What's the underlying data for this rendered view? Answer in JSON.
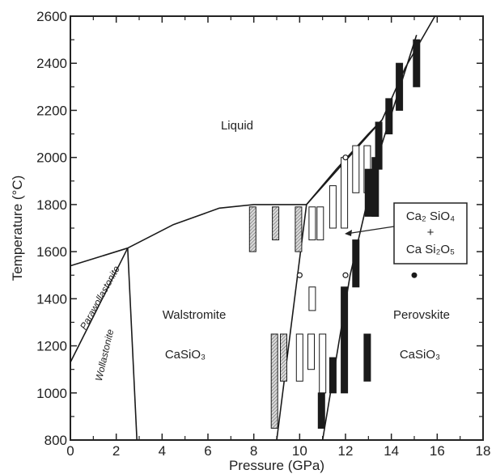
{
  "chart_data": {
    "type": "scatter",
    "title": "",
    "xlabel": "Pressure (GPa)",
    "ylabel": "Temperature (°C)",
    "xlim": [
      0,
      18
    ],
    "ylim": [
      800,
      2600
    ],
    "x_ticks": [
      0,
      2,
      4,
      6,
      8,
      10,
      12,
      14,
      16,
      18
    ],
    "y_ticks": [
      800,
      1000,
      1200,
      1400,
      1600,
      1800,
      2000,
      2200,
      2400,
      2600
    ],
    "grid": false,
    "phase_boundaries": [
      {
        "points": [
          [
            0,
            1540
          ],
          [
            2.5,
            1615
          ]
        ]
      },
      {
        "points": [
          [
            2.5,
            1615
          ],
          [
            4.5,
            1715
          ],
          [
            6.5,
            1785
          ],
          [
            8,
            1800
          ],
          [
            10.3,
            1800
          ]
        ]
      },
      {
        "points": [
          [
            10.3,
            1800
          ],
          [
            11.6,
            1950
          ],
          [
            13,
            2100
          ],
          [
            13.6,
            2160
          ]
        ]
      },
      {
        "points": [
          [
            13.6,
            2160
          ],
          [
            14.6,
            2380
          ],
          [
            15.9,
            2600
          ]
        ]
      },
      {
        "points": [
          [
            2.5,
            1615
          ],
          [
            0,
            1130
          ]
        ]
      },
      {
        "points": [
          [
            2.5,
            1615
          ],
          [
            2.9,
            800
          ]
        ]
      },
      {
        "points": [
          [
            9.0,
            800
          ],
          [
            10.3,
            1800
          ]
        ]
      },
      {
        "points": [
          [
            10.3,
            1800
          ],
          [
            13.6,
            2160
          ]
        ]
      },
      {
        "points": [
          [
            11.0,
            800
          ],
          [
            12.2,
            1500
          ],
          [
            13.4,
            2000
          ],
          [
            15.1,
            2520
          ]
        ]
      }
    ],
    "experiments": [
      {
        "phase": "Walstromite",
        "x": 7.95,
        "ymin": 1600,
        "ymax": 1790
      },
      {
        "phase": "Walstromite",
        "x": 8.95,
        "ymin": 1650,
        "ymax": 1790
      },
      {
        "phase": "Walstromite",
        "x": 9.95,
        "ymin": 1600,
        "ymax": 1790
      },
      {
        "phase": "Walstromite",
        "x": 8.9,
        "ymin": 850,
        "ymax": 1250
      },
      {
        "phase": "Walstromite",
        "x": 9.3,
        "ymin": 1050,
        "ymax": 1250
      },
      {
        "phase": "Ca2SiO4 + CaSi2O5",
        "x": 10.55,
        "ymin": 1650,
        "ymax": 1790
      },
      {
        "phase": "Ca2SiO4 + CaSi2O5",
        "x": 10.9,
        "ymin": 1650,
        "ymax": 1790
      },
      {
        "phase": "Ca2SiO4 + CaSi2O5",
        "x": 11.45,
        "ymin": 1700,
        "ymax": 1880
      },
      {
        "phase": "Ca2SiO4 + CaSi2O5",
        "x": 11.95,
        "ymin": 1700,
        "ymax": 2000
      },
      {
        "phase": "Ca2SiO4 + CaSi2O5",
        "x": 12.45,
        "ymin": 1850,
        "ymax": 2050
      },
      {
        "phase": "Ca2SiO4 + CaSi2O5",
        "x": 12.95,
        "ymin": 1850,
        "ymax": 2050
      },
      {
        "phase": "Ca2SiO4 + CaSi2O5",
        "x": 10.0,
        "ymin": 1050,
        "ymax": 1250
      },
      {
        "phase": "Ca2SiO4 + CaSi2O5",
        "x": 10.5,
        "ymin": 1100,
        "ymax": 1250
      },
      {
        "phase": "Ca2SiO4 + CaSi2O5",
        "x": 10.55,
        "ymin": 1350,
        "ymax": 1450
      },
      {
        "phase": "Ca2SiO4 + CaSi2O5",
        "x": 11.0,
        "ymin": 1000,
        "ymax": 1250
      },
      {
        "phase": "Perovskite",
        "x": 13.0,
        "ymin": 1750,
        "ymax": 1950
      },
      {
        "phase": "Perovskite",
        "x": 13.3,
        "ymin": 1750,
        "ymax": 2000
      },
      {
        "phase": "Perovskite",
        "x": 13.45,
        "ymin": 1950,
        "ymax": 2150
      },
      {
        "phase": "Perovskite",
        "x": 13.9,
        "ymin": 2100,
        "ymax": 2250
      },
      {
        "phase": "Perovskite",
        "x": 14.35,
        "ymin": 2200,
        "ymax": 2400
      },
      {
        "phase": "Perovskite",
        "x": 15.1,
        "ymin": 2300,
        "ymax": 2500
      },
      {
        "phase": "Perovskite",
        "x": 12.45,
        "ymin": 1450,
        "ymax": 1650
      },
      {
        "phase": "Perovskite",
        "x": 11.95,
        "ymin": 1000,
        "ymax": 1450
      },
      {
        "phase": "Perovskite",
        "x": 11.45,
        "ymin": 1000,
        "ymax": 1150
      },
      {
        "phase": "Perovskite",
        "x": 10.95,
        "ymin": 850,
        "ymax": 1000
      },
      {
        "phase": "Perovskite",
        "x": 12.95,
        "ymin": 1050,
        "ymax": 1250
      }
    ],
    "open_circles": [
      [
        10.0,
        1500
      ],
      [
        12.0,
        1500
      ],
      [
        12.0,
        2000
      ]
    ],
    "filled_point": [
      15.0,
      1500
    ],
    "phase_colors": {
      "Walstromite": "#b8b8b8",
      "Ca2SiO4 + CaSi2O5": "#ffffff",
      "Perovskite": "#1a1a1a"
    },
    "region_labels": {
      "liquid": "Liquid",
      "walstromite": "Walstromite",
      "walstromite_formula": "CaSiO₃",
      "perovskite": "Perovskite",
      "perovskite_formula": "CaSiO₃",
      "parawollastonite": "Parawollastonite",
      "wollastonite": "Wollastonite"
    },
    "legend": {
      "line1": "Ca₂ SiO₄",
      "line2": "+",
      "line3": "Ca Si₂O₅"
    }
  }
}
